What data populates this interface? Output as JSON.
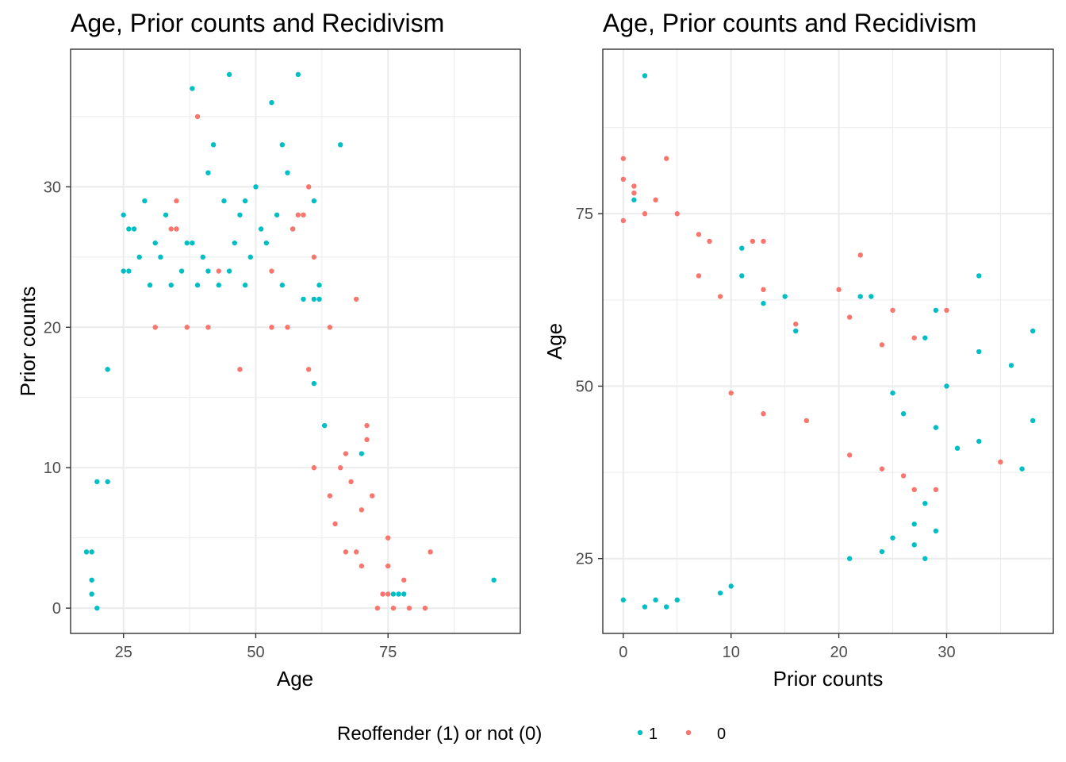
{
  "chart_data": [
    {
      "type": "scatter",
      "title": "Age, Prior counts and Recidivism",
      "xlabel": "Age",
      "ylabel": "Prior counts",
      "xlim": [
        15,
        100
      ],
      "ylim": [
        -1.8,
        39.8
      ],
      "x_ticks": [
        25,
        50,
        75
      ],
      "y_ticks": [
        0,
        10,
        20,
        30
      ],
      "grid": true,
      "series": [
        {
          "name": "1",
          "color": "#00BFC4",
          "points": [
            [
              95,
              2
            ],
            [
              45,
              38
            ],
            [
              58,
              38
            ],
            [
              38,
              37
            ],
            [
              53,
              36
            ],
            [
              42,
              33
            ],
            [
              55,
              33
            ],
            [
              66,
              33
            ],
            [
              41,
              31
            ],
            [
              56,
              31
            ],
            [
              50,
              30
            ],
            [
              61,
              29
            ],
            [
              29,
              29
            ],
            [
              44,
              29
            ],
            [
              48,
              29
            ],
            [
              25,
              28
            ],
            [
              33,
              28
            ],
            [
              47,
              28
            ],
            [
              54,
              28
            ],
            [
              26,
              27
            ],
            [
              27,
              27
            ],
            [
              35,
              27
            ],
            [
              51,
              27
            ],
            [
              57,
              27
            ],
            [
              31,
              26
            ],
            [
              37,
              26
            ],
            [
              38,
              26
            ],
            [
              46,
              26
            ],
            [
              52,
              26
            ],
            [
              28,
              25
            ],
            [
              32,
              25
            ],
            [
              40,
              25
            ],
            [
              49,
              25
            ],
            [
              25,
              24
            ],
            [
              26,
              24
            ],
            [
              36,
              24
            ],
            [
              41,
              24
            ],
            [
              45,
              24
            ],
            [
              62,
              23
            ],
            [
              30,
              23
            ],
            [
              34,
              23
            ],
            [
              39,
              23
            ],
            [
              43,
              23
            ],
            [
              48,
              23
            ],
            [
              55,
              23
            ],
            [
              59,
              22
            ],
            [
              61,
              22
            ],
            [
              62,
              22
            ],
            [
              70,
              11
            ],
            [
              22,
              17
            ],
            [
              61,
              16
            ],
            [
              22,
              9
            ],
            [
              20,
              9
            ],
            [
              19,
              4
            ],
            [
              18,
              4
            ],
            [
              76,
              1
            ],
            [
              77,
              1
            ],
            [
              78,
              1
            ],
            [
              19,
              1
            ],
            [
              20,
              0
            ],
            [
              19,
              2
            ],
            [
              63,
              13
            ]
          ]
        },
        {
          "name": "0",
          "color": "#F8766D",
          "points": [
            [
              39,
              35
            ],
            [
              60,
              30
            ],
            [
              35,
              29
            ],
            [
              61,
              25
            ],
            [
              59,
              28
            ],
            [
              58,
              28
            ],
            [
              34,
              27
            ],
            [
              35,
              27
            ],
            [
              57,
              27
            ],
            [
              43,
              24
            ],
            [
              53,
              24
            ],
            [
              69,
              22
            ],
            [
              31,
              20
            ],
            [
              37,
              20
            ],
            [
              41,
              20
            ],
            [
              53,
              20
            ],
            [
              56,
              20
            ],
            [
              64,
              20
            ],
            [
              47,
              17
            ],
            [
              60,
              17
            ],
            [
              71,
              13
            ],
            [
              71,
              12
            ],
            [
              67,
              11
            ],
            [
              61,
              10
            ],
            [
              72,
              8
            ],
            [
              64,
              8
            ],
            [
              70,
              7
            ],
            [
              75,
              5
            ],
            [
              83,
              4
            ],
            [
              75,
              3
            ],
            [
              78,
              2
            ],
            [
              75,
              1
            ],
            [
              79,
              0
            ],
            [
              82,
              0
            ],
            [
              66,
              10
            ],
            [
              68,
              9
            ],
            [
              65,
              6
            ],
            [
              67,
              4
            ],
            [
              69,
              4
            ],
            [
              70,
              3
            ],
            [
              74,
              1
            ],
            [
              76,
              0
            ],
            [
              73,
              0
            ]
          ]
        }
      ]
    },
    {
      "type": "scatter",
      "title": "Age, Prior counts and Recidivism",
      "xlabel": "Prior counts",
      "ylabel": "Age",
      "xlim": [
        -1.9,
        39.9
      ],
      "ylim": [
        14.15,
        98.85
      ],
      "x_ticks": [
        0,
        10,
        20,
        30
      ],
      "y_ticks": [
        25,
        50,
        75
      ],
      "grid": true,
      "series": [
        {
          "name": "1",
          "color": "#00BFC4",
          "points": [
            [
              2,
              95
            ],
            [
              1,
              77
            ],
            [
              33,
              66
            ],
            [
              38,
              58
            ],
            [
              36,
              53
            ],
            [
              31,
              41
            ],
            [
              37,
              38
            ],
            [
              38,
              45
            ],
            [
              33,
              42
            ],
            [
              33,
              55
            ],
            [
              29,
              61
            ],
            [
              30,
              50
            ],
            [
              29,
              44
            ],
            [
              28,
              57
            ],
            [
              26,
              46
            ],
            [
              25,
              49
            ],
            [
              28,
              33
            ],
            [
              27,
              30
            ],
            [
              29,
              29
            ],
            [
              24,
              26
            ],
            [
              25,
              28
            ],
            [
              27,
              27
            ],
            [
              28,
              25
            ],
            [
              21,
              25
            ],
            [
              23,
              63
            ],
            [
              22,
              63
            ],
            [
              11,
              66
            ],
            [
              11,
              70
            ],
            [
              13,
              62
            ],
            [
              16,
              58
            ],
            [
              15,
              63
            ],
            [
              0,
              19
            ],
            [
              2,
              18
            ],
            [
              4,
              18
            ],
            [
              3,
              19
            ],
            [
              5,
              19
            ],
            [
              9,
              20
            ],
            [
              10,
              21
            ]
          ]
        },
        {
          "name": "0",
          "color": "#F8766D",
          "points": [
            [
              0,
              83
            ],
            [
              4,
              83
            ],
            [
              0,
              80
            ],
            [
              1,
              79
            ],
            [
              1,
              78
            ],
            [
              3,
              77
            ],
            [
              2,
              75
            ],
            [
              5,
              75
            ],
            [
              0,
              74
            ],
            [
              7,
              72
            ],
            [
              8,
              71
            ],
            [
              12,
              71
            ],
            [
              13,
              71
            ],
            [
              22,
              69
            ],
            [
              7,
              66
            ],
            [
              9,
              63
            ],
            [
              13,
              64
            ],
            [
              16,
              59
            ],
            [
              20,
              64
            ],
            [
              21,
              60
            ],
            [
              25,
              61
            ],
            [
              30,
              61
            ],
            [
              35,
              39
            ],
            [
              27,
              57
            ],
            [
              24,
              56
            ],
            [
              27,
              35
            ],
            [
              29,
              35
            ],
            [
              26,
              37
            ],
            [
              24,
              38
            ],
            [
              21,
              40
            ],
            [
              17,
              45
            ],
            [
              13,
              46
            ],
            [
              10,
              49
            ]
          ]
        }
      ]
    }
  ],
  "legend": {
    "title": "Reoffender (1) or not (0)",
    "entries": [
      {
        "label": "1",
        "color": "#00BFC4"
      },
      {
        "label": "0",
        "color": "#F8766D"
      }
    ]
  }
}
